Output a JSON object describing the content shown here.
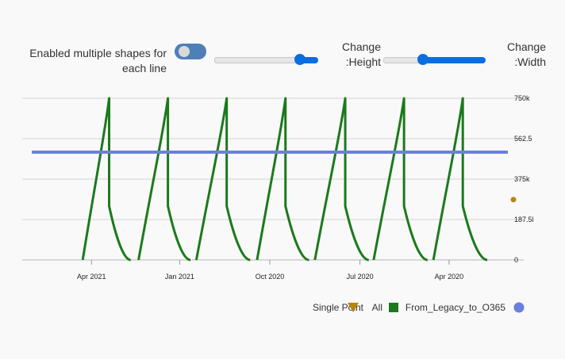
{
  "controls": {
    "multi_shapes_label": "Enabled multiple shapes for each line",
    "multi_shapes_enabled": false,
    "height_label": "Change :Height",
    "height_value": 0.82,
    "width_label": "Change :Width",
    "width_value": 0.38
  },
  "chart_data": {
    "type": "line",
    "x_axis": {
      "reversed": true,
      "ticks": [
        "Apr 2021",
        "Jan 2021",
        "Oct 2020",
        "Jul 2020",
        "Apr 2020"
      ],
      "range": [
        "2021-06-01",
        "2020-02-01"
      ]
    },
    "y_axis": {
      "position": "right",
      "ticks": [
        "750k",
        "562.5",
        "375k",
        "187.5l",
        "0"
      ],
      "ylim": [
        0,
        750000
      ]
    },
    "series": [
      {
        "name": "All",
        "color": "#1b7a1b",
        "shape": "square",
        "cycles": [
          {
            "rise_start": "2021-04-10",
            "peak": "2021-03-14",
            "drop_value": 250000,
            "end": "2021-02-20"
          },
          {
            "rise_start": "2021-02-12",
            "peak": "2021-01-13",
            "drop_value": 250000,
            "end": "2020-12-21"
          },
          {
            "rise_start": "2020-12-15",
            "peak": "2020-11-14",
            "drop_value": 250000,
            "end": "2020-10-21"
          },
          {
            "rise_start": "2020-10-14",
            "peak": "2020-09-15",
            "drop_value": 250000,
            "end": "2020-08-22"
          },
          {
            "rise_start": "2020-08-16",
            "peak": "2020-07-16",
            "drop_value": 250000,
            "end": "2020-06-22"
          },
          {
            "rise_start": "2020-06-17",
            "peak": "2020-05-17",
            "drop_value": 250000,
            "end": "2020-04-23"
          },
          {
            "rise_start": "2020-04-17",
            "peak": "2020-03-18",
            "drop_value": 250000,
            "end": "2020-02-22"
          }
        ]
      },
      {
        "name": "From_Legacy_to_O365",
        "color": "#6b7fe0",
        "shape": "circle",
        "x": [
          "2021-06-01",
          "2020-02-01"
        ],
        "y": [
          500000,
          500000
        ]
      },
      {
        "name": "Single Point",
        "color": "#b8860b",
        "shape": "triangle-down",
        "x": [
          "2020-02-01"
        ],
        "y": [
          280000
        ]
      }
    ],
    "grid": true,
    "legend_position": "bottom-right"
  }
}
